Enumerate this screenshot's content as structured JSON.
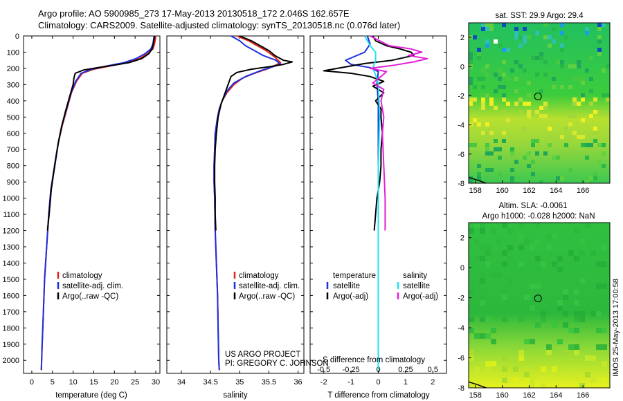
{
  "header": {
    "title_line1": "Argo profile: AO 5900985_273 17-May-2013 20130518_172 2.046S 162.657E",
    "title_line2": "Climatology: CARS2009. Satellite-adjusted climatology: synTS_20130518.nc (0.076d later)"
  },
  "colors": {
    "climatology": "#e0201a",
    "satellite": "#1a2fe0",
    "argo": "#000000",
    "sal_satellite": "#22e0f0",
    "sal_argo": "#e020d8"
  },
  "chart_data": [
    {
      "type": "line",
      "panel": "temperature",
      "xlabel": "temperature (deg C)",
      "ylabel": "",
      "xlim": [
        -2,
        31
      ],
      "ylim": [
        2080,
        0
      ],
      "xticks": [
        0,
        5,
        10,
        15,
        20,
        25,
        30
      ],
      "yticks": [
        0,
        100,
        200,
        300,
        400,
        500,
        600,
        700,
        800,
        900,
        1000,
        1100,
        1200,
        1300,
        1400,
        1500,
        1600,
        1700,
        1800,
        1900,
        2000
      ],
      "legend": [
        "climatology",
        "satellite-adj. clim.",
        "Argo(..raw -QC)"
      ],
      "series": [
        {
          "name": "climatology",
          "color": "#e0201a",
          "points": [
            [
              30,
              0
            ],
            [
              29.9,
              20
            ],
            [
              29.7,
              50
            ],
            [
              29.3,
              80
            ],
            [
              28,
              110
            ],
            [
              26,
              140
            ],
            [
              23,
              165
            ],
            [
              19,
              185
            ],
            [
              15,
              205
            ],
            [
              12.2,
              230
            ],
            [
              10.8,
              280
            ],
            [
              9.6,
              350
            ],
            [
              8.5,
              450
            ],
            [
              7.4,
              550
            ],
            [
              6.5,
              650
            ],
            [
              5.8,
              750
            ],
            [
              5.2,
              850
            ],
            [
              4.6,
              950
            ],
            [
              4.1,
              1100
            ],
            [
              3.6,
              1300
            ],
            [
              3.1,
              1500
            ],
            [
              2.8,
              1700
            ],
            [
              2.5,
              1900
            ],
            [
              2.3,
              2060
            ]
          ]
        },
        {
          "name": "satellite-adj. clim.",
          "color": "#1a2fe0",
          "points": [
            [
              29.6,
              0
            ],
            [
              29.5,
              20
            ],
            [
              29.3,
              50
            ],
            [
              28.8,
              80
            ],
            [
              27.4,
              110
            ],
            [
              25.2,
              140
            ],
            [
              22.2,
              165
            ],
            [
              18.2,
              185
            ],
            [
              14.5,
              205
            ],
            [
              11.9,
              230
            ],
            [
              10.6,
              280
            ],
            [
              9.5,
              350
            ],
            [
              8.4,
              450
            ],
            [
              7.3,
              550
            ],
            [
              6.5,
              650
            ],
            [
              5.8,
              750
            ],
            [
              5.2,
              850
            ],
            [
              4.6,
              950
            ],
            [
              4.1,
              1100
            ],
            [
              3.6,
              1300
            ],
            [
              3.1,
              1500
            ],
            [
              2.8,
              1700
            ],
            [
              2.5,
              1900
            ],
            [
              2.3,
              2060
            ]
          ]
        },
        {
          "name": "Argo(..raw -QC)",
          "color": "#000000",
          "points": [
            [
              29.7,
              0
            ],
            [
              29.6,
              20
            ],
            [
              29.4,
              50
            ],
            [
              29.1,
              80
            ],
            [
              28.3,
              110
            ],
            [
              26.6,
              140
            ],
            [
              23.5,
              165
            ],
            [
              20,
              180
            ],
            [
              16,
              195
            ],
            [
              12.5,
              210
            ],
            [
              10.5,
              230
            ],
            [
              10.2,
              260
            ],
            [
              10,
              300
            ],
            [
              9.3,
              360
            ],
            [
              8.2,
              460
            ],
            [
              7.2,
              560
            ],
            [
              6.4,
              660
            ],
            [
              5.8,
              760
            ],
            [
              5.2,
              860
            ],
            [
              4.7,
              950
            ],
            [
              4.2,
              1100
            ],
            [
              3.8,
              1200
            ]
          ]
        }
      ]
    },
    {
      "type": "line",
      "panel": "salinity",
      "xlabel": "salinity",
      "ylabel": "",
      "xlim": [
        33.75,
        36.1
      ],
      "ylim": [
        2080,
        0
      ],
      "xticks": [
        34,
        34.5,
        35,
        35.5,
        36
      ],
      "legend": [
        "climatology",
        "satellite-adj. clim.",
        "Argo(..raw -QC)"
      ],
      "annotation_line1": "US ARGO PROJECT",
      "annotation_line2": "PI: GREGORY C. JOHNSON",
      "series": [
        {
          "name": "climatology",
          "color": "#e0201a",
          "points": [
            [
              34.95,
              0
            ],
            [
              35.15,
              30
            ],
            [
              35.3,
              60
            ],
            [
              35.45,
              90
            ],
            [
              35.6,
              130
            ],
            [
              35.7,
              165
            ],
            [
              35.5,
              200
            ],
            [
              35.25,
              230
            ],
            [
              35.05,
              260
            ],
            [
              34.9,
              300
            ],
            [
              34.78,
              350
            ],
            [
              34.7,
              400
            ],
            [
              34.65,
              450
            ],
            [
              34.62,
              500
            ],
            [
              34.6,
              550
            ],
            [
              34.58,
              600
            ],
            [
              34.57,
              700
            ],
            [
              34.56,
              800
            ],
            [
              34.56,
              900
            ],
            [
              34.57,
              1000
            ],
            [
              34.58,
              1200
            ],
            [
              34.6,
              1400
            ],
            [
              34.62,
              1600
            ],
            [
              34.63,
              1800
            ],
            [
              34.64,
              2000
            ],
            [
              34.65,
              2060
            ]
          ]
        },
        {
          "name": "satellite-adj. clim.",
          "color": "#1a2fe0",
          "points": [
            [
              34.85,
              0
            ],
            [
              35.0,
              30
            ],
            [
              35.1,
              60
            ],
            [
              35.25,
              90
            ],
            [
              35.4,
              120
            ],
            [
              35.62,
              150
            ],
            [
              35.7,
              175
            ],
            [
              35.35,
              215
            ],
            [
              35.1,
              250
            ],
            [
              34.9,
              290
            ],
            [
              34.78,
              340
            ],
            [
              34.7,
              400
            ],
            [
              34.65,
              450
            ],
            [
              34.62,
              500
            ],
            [
              34.6,
              550
            ],
            [
              34.58,
              600
            ],
            [
              34.57,
              700
            ],
            [
              34.56,
              800
            ],
            [
              34.56,
              900
            ],
            [
              34.57,
              1000
            ],
            [
              34.58,
              1200
            ],
            [
              34.6,
              1400
            ],
            [
              34.62,
              1600
            ],
            [
              34.63,
              1800
            ],
            [
              34.64,
              2000
            ],
            [
              34.65,
              2060
            ]
          ]
        },
        {
          "name": "Argo(..raw -QC)",
          "color": "#000000",
          "points": [
            [
              35.0,
              0
            ],
            [
              35.2,
              30
            ],
            [
              35.35,
              60
            ],
            [
              35.5,
              90
            ],
            [
              35.6,
              120
            ],
            [
              35.75,
              150
            ],
            [
              35.9,
              160
            ],
            [
              35.75,
              175
            ],
            [
              35.5,
              190
            ],
            [
              35.2,
              205
            ],
            [
              34.95,
              225
            ],
            [
              34.85,
              250
            ],
            [
              34.8,
              300
            ],
            [
              34.75,
              350
            ],
            [
              34.68,
              420
            ],
            [
              34.63,
              500
            ],
            [
              34.6,
              600
            ],
            [
              34.58,
              700
            ],
            [
              34.57,
              800
            ],
            [
              34.57,
              900
            ],
            [
              34.58,
              1000
            ],
            [
              34.58,
              1100
            ],
            [
              34.59,
              1200
            ]
          ]
        }
      ]
    },
    {
      "type": "line",
      "panel": "difference",
      "xlabel": "T difference from climatology",
      "xlabel_top": "S difference from climatology",
      "ylabel": "",
      "xlim": [
        -2.5,
        2.5
      ],
      "ylim": [
        2080,
        0
      ],
      "xticks_T": [
        -2,
        -1,
        0,
        1,
        2
      ],
      "xticks_S": [
        "-0.5",
        "-0.25",
        "0",
        "0.25",
        "0.5"
      ],
      "legend_temperature_header": "temperature",
      "legend_salinity_header": "salinity",
      "legend": [
        "satellite",
        "Argo(-adj)",
        "satellite",
        "Argo(-adj)"
      ],
      "series": [
        {
          "name": "T satellite",
          "color": "#1a2fe0",
          "points": [
            [
              -0.4,
              0
            ],
            [
              -0.3,
              50
            ],
            [
              -0.5,
              100
            ],
            [
              -1.2,
              150
            ],
            [
              -1.0,
              175
            ],
            [
              -0.3,
              195
            ],
            [
              0,
              220
            ],
            [
              -0.05,
              300
            ],
            [
              0,
              400
            ],
            [
              0,
              600
            ],
            [
              0,
              900
            ],
            [
              0,
              1200
            ],
            [
              0,
              1600
            ],
            [
              0,
              2060
            ]
          ]
        },
        {
          "name": "T Argo(-adj)",
          "color": "#000000",
          "points": [
            [
              -0.2,
              0
            ],
            [
              -0.1,
              30
            ],
            [
              0.3,
              60
            ],
            [
              0.8,
              80
            ],
            [
              1.2,
              100
            ],
            [
              1.3,
              120
            ],
            [
              0.5,
              150
            ],
            [
              -0.5,
              170
            ],
            [
              -1.5,
              200
            ],
            [
              -2.0,
              215
            ],
            [
              -1.0,
              230
            ],
            [
              -0.3,
              250
            ],
            [
              0.2,
              280
            ],
            [
              -0.2,
              310
            ],
            [
              0.2,
              350
            ],
            [
              -0.1,
              400
            ],
            [
              0.1,
              450
            ],
            [
              0.1,
              500
            ],
            [
              0.15,
              600
            ],
            [
              0.1,
              700
            ],
            [
              0.1,
              800
            ],
            [
              0.05,
              900
            ],
            [
              -0.05,
              1000
            ],
            [
              -0.1,
              1100
            ],
            [
              -0.15,
              1200
            ]
          ]
        },
        {
          "name": "S satellite",
          "color": "#22e0f0",
          "points": [
            [
              -0.5,
              0
            ],
            [
              -0.4,
              30
            ],
            [
              -0.3,
              60
            ],
            [
              -0.1,
              100
            ],
            [
              -0.1,
              150
            ],
            [
              -0.2,
              200
            ],
            [
              -0.05,
              260
            ],
            [
              0,
              300
            ],
            [
              0.05,
              500
            ],
            [
              0,
              800
            ],
            [
              0,
              1200
            ],
            [
              0,
              1600
            ],
            [
              0,
              2060
            ]
          ]
        },
        {
          "name": "S Argo(-adj)",
          "color": "#e020d8",
          "points": [
            [
              -0.3,
              0
            ],
            [
              0.4,
              60
            ],
            [
              1.2,
              80
            ],
            [
              1.6,
              100
            ],
            [
              1.1,
              120
            ],
            [
              1.8,
              140
            ],
            [
              1.3,
              160
            ],
            [
              0.6,
              180
            ],
            [
              -0.3,
              200
            ],
            [
              0.3,
              220
            ],
            [
              0.1,
              250
            ],
            [
              -0.2,
              290
            ],
            [
              0.2,
              330
            ],
            [
              0.1,
              400
            ],
            [
              0.2,
              500
            ],
            [
              0.15,
              600
            ],
            [
              0.2,
              800
            ],
            [
              0.25,
              1000
            ],
            [
              0.25,
              1200
            ]
          ]
        }
      ]
    },
    {
      "type": "heatmap",
      "panel": "sst_map",
      "title": "sat. SST: 29.9 Argo: 29.4",
      "xlim": [
        157.5,
        168
      ],
      "ylim": [
        -8,
        3
      ],
      "xticks": [
        158,
        160,
        162,
        164,
        166
      ],
      "yticks": [
        -8,
        -6,
        -4,
        -2,
        0,
        2
      ],
      "marker": {
        "lon": 162.657,
        "lat": -2.046
      }
    },
    {
      "type": "heatmap",
      "panel": "sla_map",
      "title": "Altim. SLA: -0.0061",
      "subtitle": "Argo h1000: -0.028 h2000: NaN",
      "xlim": [
        157.5,
        168
      ],
      "ylim": [
        -8,
        3
      ],
      "xticks": [
        158,
        160,
        162,
        164,
        166
      ],
      "yticks": [
        -8,
        -6,
        -4,
        -2,
        0,
        2
      ],
      "marker": {
        "lon": 162.657,
        "lat": -2.046
      }
    }
  ],
  "stamp": "IMOS 25-May-2013 17:00:58"
}
